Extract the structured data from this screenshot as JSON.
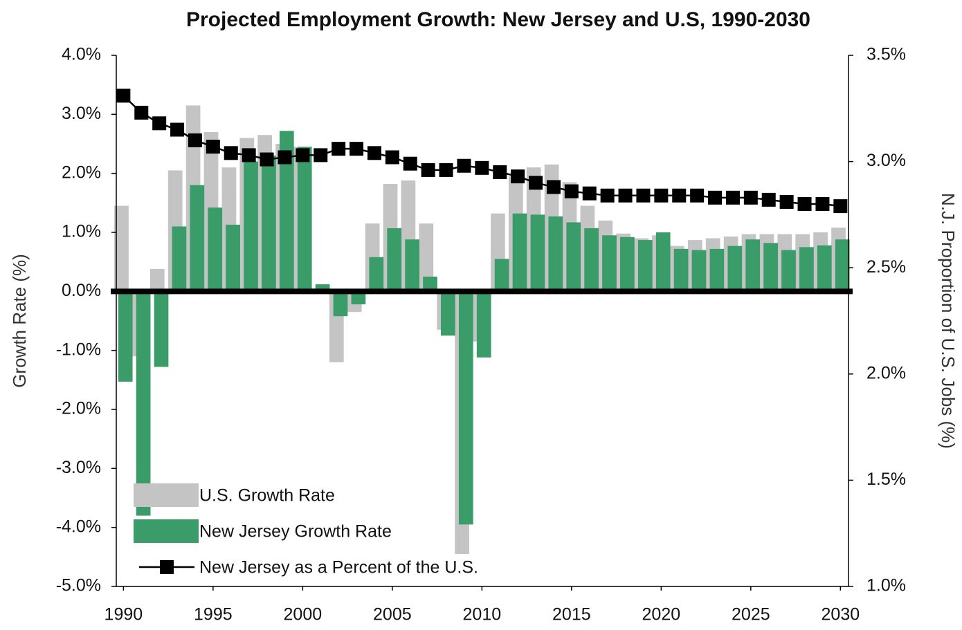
{
  "chart_data": {
    "type": "bar",
    "title": "Projected Employment Growth: New Jersey and U.S, 1990-2030",
    "y_label": "Growth Rate (%)",
    "y2_label": "N.J. Proportion of U.S. Jobs (%)",
    "x": [
      1990,
      1991,
      1992,
      1993,
      1994,
      1995,
      1996,
      1997,
      1998,
      1999,
      2000,
      2001,
      2002,
      2003,
      2004,
      2005,
      2006,
      2007,
      2008,
      2009,
      2010,
      2011,
      2012,
      2013,
      2014,
      2015,
      2016,
      2017,
      2018,
      2019,
      2020,
      2021,
      2022,
      2023,
      2024,
      2025,
      2026,
      2027,
      2028,
      2029,
      2030
    ],
    "xlim": [
      1989.6,
      2030.45
    ],
    "xticks": [
      1990,
      1995,
      2000,
      2005,
      2010,
      2015,
      2020,
      2025,
      2030
    ],
    "ylim": [
      -5,
      4
    ],
    "yticks": [
      {
        "value": 4,
        "label": "4.0%"
      },
      {
        "value": 3,
        "label": "3.0%"
      },
      {
        "value": 2,
        "label": "2.0%"
      },
      {
        "value": 1,
        "label": "1.0%"
      },
      {
        "value": 0,
        "label": "0.0%"
      },
      {
        "value": -1,
        "label": "-1.0%"
      },
      {
        "value": -2,
        "label": "-2.0%"
      },
      {
        "value": -3,
        "label": "-3.0%"
      },
      {
        "value": -4,
        "label": "-4.0%"
      },
      {
        "value": -5,
        "label": "-5.0%"
      }
    ],
    "y2lim": [
      1,
      3.5
    ],
    "y2ticks": [
      {
        "value": 3.5,
        "label": "3.5%"
      },
      {
        "value": 3,
        "label": "3.0%"
      },
      {
        "value": 2.5,
        "label": "2.5%"
      },
      {
        "value": 2,
        "label": "2.0%"
      },
      {
        "value": 1.5,
        "label": "1.5%"
      },
      {
        "value": 1,
        "label": "1.0%"
      }
    ],
    "legend": "lower left",
    "series": [
      {
        "name": "U.S. Growth Rate",
        "type": "bar",
        "color": "#c4c4c4",
        "values": [
          1.45,
          -1.1,
          0.38,
          2.05,
          3.15,
          2.7,
          2.1,
          2.6,
          2.65,
          2.5,
          2.45,
          0.05,
          -1.2,
          -0.35,
          1.15,
          1.82,
          1.88,
          1.15,
          -0.65,
          -4.45,
          -0.85,
          1.32,
          1.95,
          2.1,
          2.15,
          1.85,
          1.45,
          1.2,
          0.98,
          0.9,
          0.95,
          0.77,
          0.87,
          0.9,
          0.93,
          0.97,
          0.97,
          0.97,
          0.97,
          1.0,
          1.08
        ]
      },
      {
        "name": "New Jersey Growth Rate",
        "type": "bar",
        "color": "#3a9c68",
        "values": [
          -1.53,
          -3.8,
          -1.28,
          1.1,
          1.8,
          1.42,
          1.13,
          2.2,
          2.3,
          2.72,
          2.45,
          0.12,
          -0.42,
          -0.22,
          0.58,
          1.07,
          0.88,
          0.25,
          -0.75,
          -3.95,
          -1.12,
          0.55,
          1.32,
          1.3,
          1.27,
          1.17,
          1.07,
          0.95,
          0.92,
          0.87,
          1.0,
          0.72,
          0.7,
          0.72,
          0.77,
          0.88,
          0.82,
          0.7,
          0.75,
          0.78,
          0.88
        ]
      },
      {
        "name": "New Jersey as a Percent of the U.S.",
        "type": "line",
        "axis": "y2",
        "color": "#000000",
        "values": [
          3.31,
          3.23,
          3.18,
          3.15,
          3.1,
          3.07,
          3.04,
          3.03,
          3.01,
          3.02,
          3.03,
          3.03,
          3.06,
          3.06,
          3.04,
          3.02,
          2.99,
          2.96,
          2.96,
          2.98,
          2.97,
          2.95,
          2.93,
          2.9,
          2.88,
          2.86,
          2.85,
          2.84,
          2.84,
          2.84,
          2.84,
          2.84,
          2.84,
          2.83,
          2.83,
          2.83,
          2.82,
          2.81,
          2.8,
          2.8,
          2.79
        ]
      }
    ]
  }
}
